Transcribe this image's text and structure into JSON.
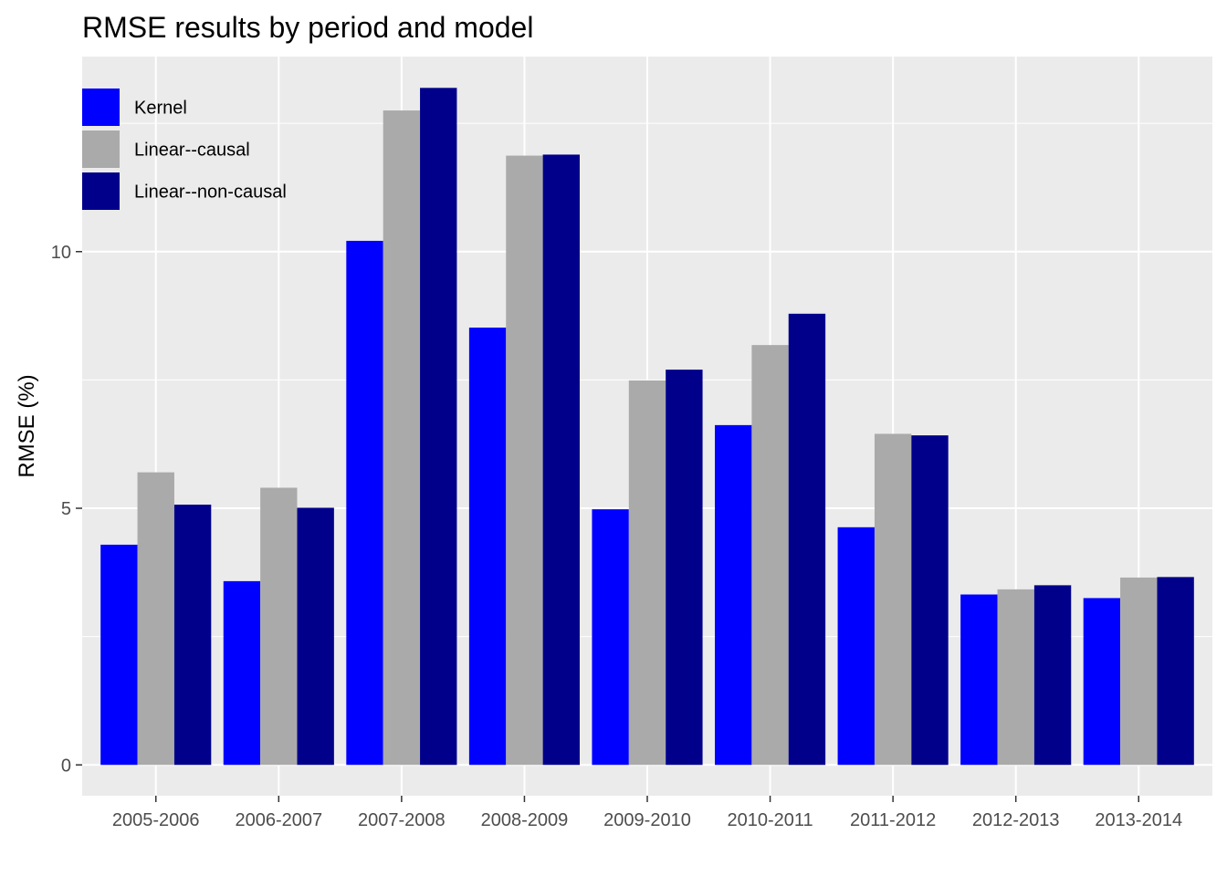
{
  "chart_data": {
    "type": "bar",
    "title": "RMSE results by period and model",
    "xlabel": "",
    "ylabel": "RMSE (%)",
    "ylim": [
      -0.6,
      13.8
    ],
    "yticks": [
      0,
      5,
      10
    ],
    "ytick_labels": [
      "0",
      "5",
      "10"
    ],
    "grid": true,
    "legend_position": "top-left",
    "categories": [
      "2005-2006",
      "2006-2007",
      "2007-2008",
      "2008-2009",
      "2009-2010",
      "2010-2011",
      "2011-2012",
      "2012-2013",
      "2013-2014"
    ],
    "series": [
      {
        "name": "Kernel",
        "color": "#0000ff",
        "values": [
          4.29,
          3.58,
          10.21,
          8.52,
          4.98,
          6.62,
          4.63,
          3.32,
          3.25
        ]
      },
      {
        "name": "Linear--causal",
        "color": "#aaaaaa",
        "values": [
          5.7,
          5.4,
          12.75,
          11.87,
          7.49,
          8.18,
          6.45,
          3.42,
          3.65
        ]
      },
      {
        "name": "Linear--non-causal",
        "color": "#00008b",
        "values": [
          5.07,
          5.01,
          13.19,
          11.89,
          7.7,
          8.79,
          6.42,
          3.5,
          3.66
        ]
      }
    ]
  }
}
